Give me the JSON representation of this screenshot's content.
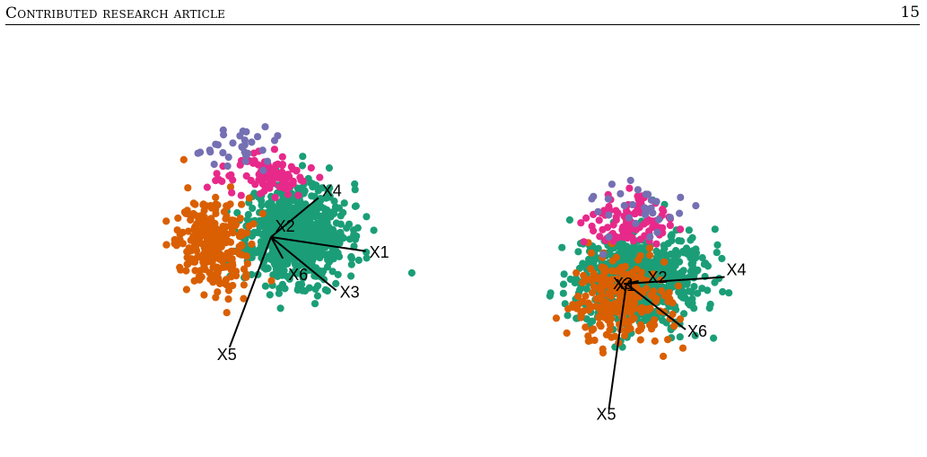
{
  "header": {
    "running_title": "Contributed research article",
    "page_number": "15"
  },
  "palette": {
    "green": "#1b9e77",
    "orange": "#d95f02",
    "purple": "#7570b3",
    "pink": "#e7298a",
    "axis": "#000000"
  },
  "chart_data": [
    {
      "type": "scatter",
      "title": "",
      "xlabel": "",
      "ylabel": "",
      "grid": false,
      "legend": "none",
      "projection_axes": [
        {
          "label": "X1",
          "x": 0.8,
          "y": -0.12
        },
        {
          "label": "X2",
          "x": 0.02,
          "y": 0.0
        },
        {
          "label": "X3",
          "x": 0.55,
          "y": -0.45
        },
        {
          "label": "X4",
          "x": 0.4,
          "y": 0.33
        },
        {
          "label": "X5",
          "x": -0.35,
          "y": -0.93
        },
        {
          "label": "X6",
          "x": 0.1,
          "y": -0.18
        }
      ],
      "series": [
        {
          "color": "green",
          "n": 700,
          "center": [
            0.22,
            0.03
          ],
          "spread": [
            0.42,
            0.42
          ]
        },
        {
          "color": "orange",
          "n": 260,
          "center": [
            -0.48,
            -0.06
          ],
          "spread": [
            0.32,
            0.38
          ]
        },
        {
          "color": "pink",
          "n": 95,
          "center": [
            -0.03,
            0.52
          ],
          "spread": [
            0.38,
            0.16
          ]
        },
        {
          "color": "purple",
          "n": 32,
          "center": [
            -0.28,
            0.74
          ],
          "spread": [
            0.45,
            0.18
          ]
        }
      ]
    },
    {
      "type": "scatter",
      "title": "",
      "xlabel": "",
      "ylabel": "",
      "grid": false,
      "legend": "none",
      "projection_axes": [
        {
          "label": "X1",
          "x": 0.0,
          "y": 0.0
        },
        {
          "label": "X2",
          "x": 0.09,
          "y": 0.02
        },
        {
          "label": "X3",
          "x": -0.02,
          "y": 0.0
        },
        {
          "label": "X4",
          "x": 0.73,
          "y": 0.05
        },
        {
          "label": "X5",
          "x": -0.13,
          "y": -0.93
        },
        {
          "label": "X6",
          "x": 0.44,
          "y": -0.34
        }
      ],
      "series": [
        {
          "color": "green",
          "n": 700,
          "center": [
            0.08,
            0.04
          ],
          "spread": [
            0.48,
            0.34
          ]
        },
        {
          "color": "orange",
          "n": 260,
          "center": [
            -0.06,
            -0.12
          ],
          "spread": [
            0.34,
            0.3
          ]
        },
        {
          "color": "pink",
          "n": 95,
          "center": [
            0.02,
            0.45
          ],
          "spread": [
            0.32,
            0.18
          ]
        },
        {
          "color": "purple",
          "n": 32,
          "center": [
            0.05,
            0.58
          ],
          "spread": [
            0.45,
            0.22
          ]
        }
      ]
    }
  ]
}
